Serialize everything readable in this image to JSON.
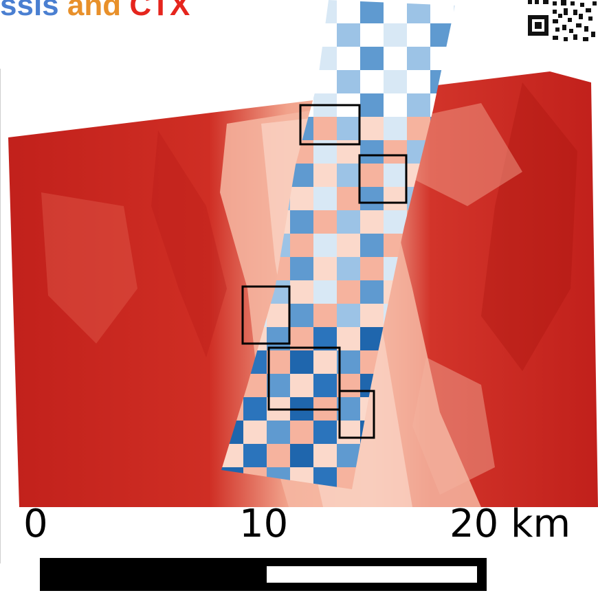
{
  "title": {
    "part1": "ssis",
    "part2": " and ",
    "part3": "CTX",
    "colors": {
      "part1": "#4a7fd1",
      "part2": "#e8902a",
      "part3": "#e5251d"
    }
  },
  "map": {
    "colors": {
      "ctx_dark": "#c1201b",
      "ctx_mid": "#df4a3c",
      "ctx_light": "#f6b39e",
      "ctx_pale": "#fbd9cb",
      "cassis_dark": "#1f66ad",
      "cassis_mid": "#5f9ad0",
      "cassis_light": "#d8e8f5"
    },
    "qr_icon": "qr-code-icon"
  },
  "scale_bar": {
    "labels": [
      "0",
      "10",
      "20 km"
    ]
  }
}
